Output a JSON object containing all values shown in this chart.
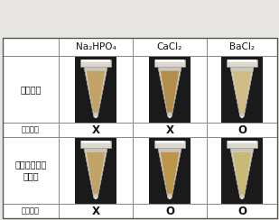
{
  "col_headers": [
    "Na₂HPO₄",
    "CaCl₂",
    "BaCl₂"
  ],
  "row1_label": "후코이단",
  "row2_label": "침전여부",
  "row3_label": "글리코사미노\n글리칸",
  "row4_label": "침전여부",
  "row2_values": [
    "X",
    "X",
    "O"
  ],
  "row4_values": [
    "X",
    "O",
    "O"
  ],
  "tube_images_row1_colors": [
    "#c0a060",
    "#b08840",
    "#d0bc80"
  ],
  "tube_images_row3_colors": [
    "#c0a060",
    "#b89040",
    "#c8b870"
  ],
  "background_color": "#e8e6e2",
  "cell_bg": "#ffffff",
  "border_color": "#888888",
  "text_color": "#111111",
  "tube_bg": "#1a1a1a",
  "font_size_header": 7.5,
  "font_size_label": 6.5,
  "font_size_result": 8.5
}
